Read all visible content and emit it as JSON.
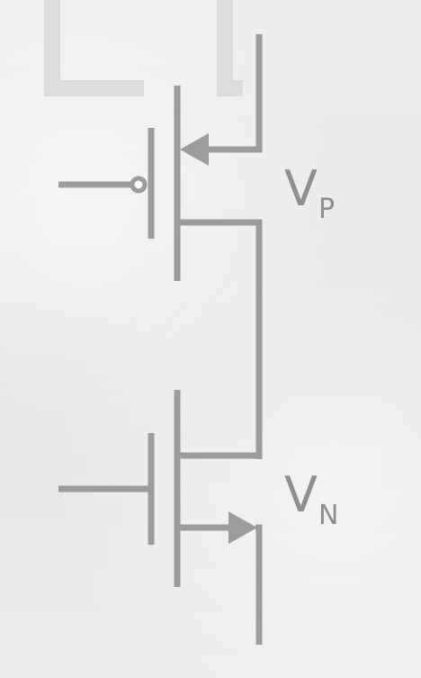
{
  "labels": {
    "vp_main": "V",
    "vp_sub": "P",
    "vn_main": "V",
    "vn_sub": "N"
  },
  "colors": {
    "wire": "#9c9c9c",
    "label": "#8f8f8f",
    "background": "#ececec"
  }
}
